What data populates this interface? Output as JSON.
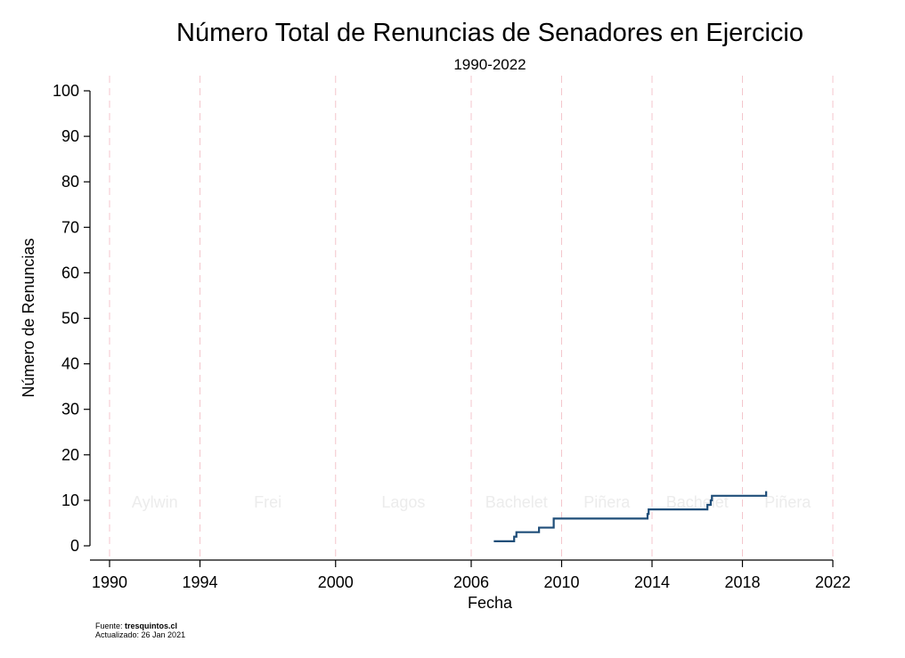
{
  "chart_data": {
    "type": "line",
    "title": "Número Total de Renuncias de Senadores en Ejercicio",
    "subtitle": "1990-2022",
    "xlabel": "Fecha",
    "ylabel": "Número de Renuncias",
    "xlim": [
      1990,
      2022
    ],
    "ylim": [
      0,
      100
    ],
    "x_ticks": [
      1990,
      1994,
      2000,
      2006,
      2010,
      2014,
      2018,
      2022
    ],
    "y_ticks": [
      0,
      10,
      20,
      30,
      40,
      50,
      60,
      70,
      80,
      90,
      100
    ],
    "vertical_reference_lines": [
      1990,
      1994,
      2000,
      2006,
      2010,
      2014,
      2018,
      2022
    ],
    "periods": [
      {
        "label": "Aylwin",
        "start": 1990,
        "end": 1994
      },
      {
        "label": "Frei",
        "start": 1994,
        "end": 2000
      },
      {
        "label": "Lagos",
        "start": 2000,
        "end": 2006
      },
      {
        "label": "Bachelet",
        "start": 2006,
        "end": 2010
      },
      {
        "label": "Piñera",
        "start": 2010,
        "end": 2014
      },
      {
        "label": "Bachelet",
        "start": 2014,
        "end": 2018
      },
      {
        "label": "Piñera",
        "start": 2018,
        "end": 2022
      }
    ],
    "series": [
      {
        "color": "#1f4e79",
        "step": true,
        "points": [
          [
            2007.0,
            1
          ],
          [
            2007.85,
            1
          ],
          [
            2007.9,
            2
          ],
          [
            2008.0,
            3
          ],
          [
            2008.95,
            3
          ],
          [
            2009.0,
            4
          ],
          [
            2009.6,
            4
          ],
          [
            2009.65,
            6
          ],
          [
            2013.75,
            6
          ],
          [
            2013.8,
            7
          ],
          [
            2013.85,
            8
          ],
          [
            2016.4,
            8
          ],
          [
            2016.45,
            9
          ],
          [
            2016.6,
            10
          ],
          [
            2016.65,
            11
          ],
          [
            2019.0,
            11
          ],
          [
            2019.05,
            12
          ]
        ]
      }
    ],
    "grid": false,
    "colors": {
      "line": "#1f4e79",
      "reference_lines": "#f4c6cc",
      "period_labels": "#ececec"
    }
  },
  "source": {
    "prefix": "Fuente: ",
    "site": "tresquintos.cl",
    "updated": "Actualizado: 26 Jan 2021"
  }
}
